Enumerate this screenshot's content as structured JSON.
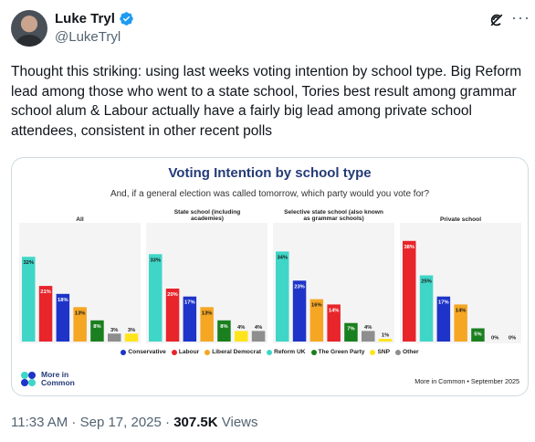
{
  "author": {
    "name": "Luke Tryl",
    "handle": "@LukeTryl",
    "verified_icon": "verified-badge-icon",
    "avatar_icon": "profile-photo"
  },
  "header_icons": [
    "grok-icon",
    "more-options-icon"
  ],
  "tweet": {
    "text": "Thought this striking: using last weeks voting intention by school type. Big Reform lead among those who went to a state school, Tories best result among grammar school alum & Labour actually have a fairly big lead among private school attendees, consistent in other recent polls",
    "time": "11:33 AM",
    "date": "Sep 17, 2025",
    "views_count": "307.5K",
    "views_label": "Views"
  },
  "chart_data": {
    "type": "bar",
    "title": "Voting Intention by school type",
    "subtitle": "And, if a general election was called tomorrow, which party would you vote for?",
    "colors": {
      "Reform UK": "#3fd6c8",
      "Labour": "#e8252b",
      "Conservative": "#1e34c8",
      "Liberal Democrat": "#f5a623",
      "The Green Party": "#1a7f1e",
      "SNP": "#ffe41c",
      "Other": "#8e8e8e"
    },
    "panels": [
      {
        "title": "All",
        "bars": [
          {
            "party": "Reform UK",
            "value": 32,
            "label": "32%"
          },
          {
            "party": "Labour",
            "value": 21,
            "label": "21%"
          },
          {
            "party": "Conservative",
            "value": 18,
            "label": "18%"
          },
          {
            "party": "Liberal Democrat",
            "value": 13,
            "label": "13%"
          },
          {
            "party": "The Green Party",
            "value": 8,
            "label": "8%"
          },
          {
            "party": "Other",
            "value": 3,
            "label": "3%"
          },
          {
            "party": "SNP",
            "value": 3,
            "label": "3%"
          }
        ]
      },
      {
        "title": "State school (including academies)",
        "bars": [
          {
            "party": "Reform UK",
            "value": 33,
            "label": "33%"
          },
          {
            "party": "Labour",
            "value": 20,
            "label": "20%"
          },
          {
            "party": "Conservative",
            "value": 17,
            "label": "17%"
          },
          {
            "party": "Liberal Democrat",
            "value": 13,
            "label": "13%"
          },
          {
            "party": "The Green Party",
            "value": 8,
            "label": "8%"
          },
          {
            "party": "SNP",
            "value": 4,
            "label": "4%"
          },
          {
            "party": "Other",
            "value": 4,
            "label": "4%"
          }
        ]
      },
      {
        "title": "Selective state school (also known as grammar schools)",
        "bars": [
          {
            "party": "Reform UK",
            "value": 34,
            "label": "34%"
          },
          {
            "party": "Conservative",
            "value": 23,
            "label": "23%"
          },
          {
            "party": "Liberal Democrat",
            "value": 16,
            "label": "16%"
          },
          {
            "party": "Labour",
            "value": 14,
            "label": "14%"
          },
          {
            "party": "The Green Party",
            "value": 7,
            "label": "7%"
          },
          {
            "party": "Other",
            "value": 4,
            "label": "4%"
          },
          {
            "party": "SNP",
            "value": 1,
            "label": "1%"
          }
        ]
      },
      {
        "title": "Private school",
        "bars": [
          {
            "party": "Labour",
            "value": 38,
            "label": "38%"
          },
          {
            "party": "Reform UK",
            "value": 25,
            "label": "25%"
          },
          {
            "party": "Conservative",
            "value": 17,
            "label": "17%"
          },
          {
            "party": "Liberal Democrat",
            "value": 14,
            "label": "14%"
          },
          {
            "party": "The Green Party",
            "value": 5,
            "label": "5%"
          },
          {
            "party": "Other",
            "value": 0,
            "label": "0%"
          },
          {
            "party": "SNP",
            "value": 0,
            "label": "0%"
          }
        ]
      }
    ],
    "legend": [
      "Conservative",
      "Labour",
      "Liberal Democrat",
      "Reform UK",
      "The Green Party",
      "SNP",
      "Other"
    ],
    "ylim": [
      0,
      40
    ]
  },
  "chart_footer": {
    "logo_line1": "More in",
    "logo_line2": "Common",
    "source": "More in Common • September 2025"
  }
}
